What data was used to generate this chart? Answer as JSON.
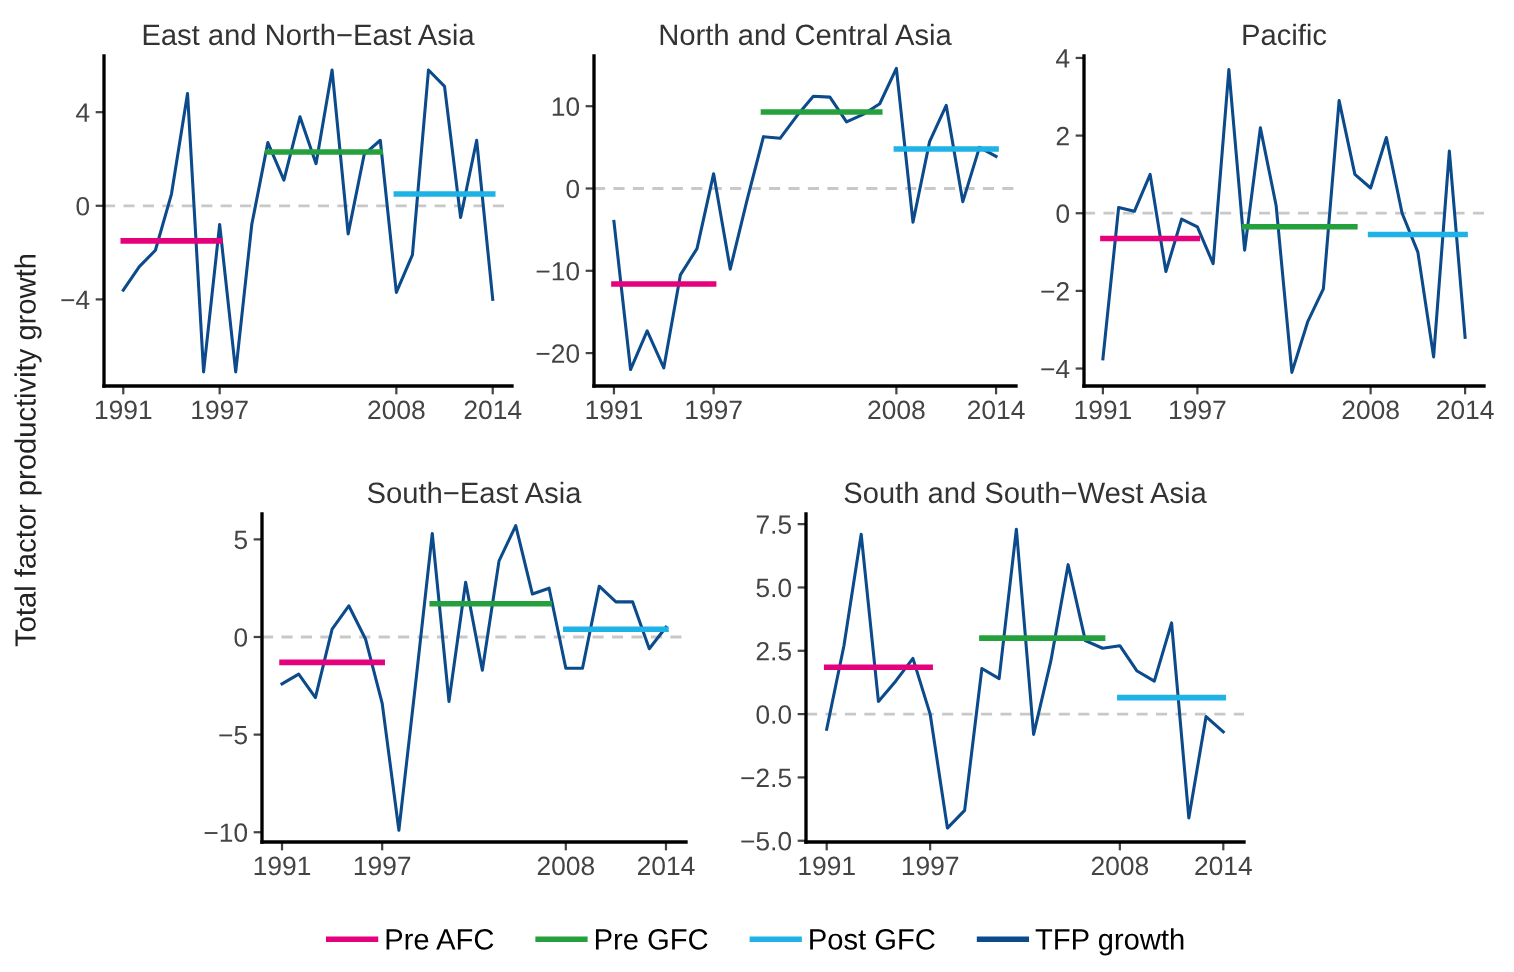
{
  "chart_data": [
    {
      "type": "line",
      "title": "East and North−East Asia",
      "ylabel": "Total factor productivity growth",
      "legend": "bottom",
      "xlim": [
        1989.8,
        2015.2
      ],
      "xticks": [
        1991,
        1997,
        2008,
        2014
      ],
      "ylim": [
        -7.7,
        6.4
      ],
      "yticks": [
        {
          "value": -4,
          "label": "−4"
        },
        0,
        4
      ],
      "ref_lines": [
        {
          "axis": "y",
          "value": 0,
          "color": "#c8c8c8",
          "line_style": "dashed"
        }
      ],
      "series": [
        {
          "name": "Pre AFC",
          "color": "#e5007d",
          "x": [
            1991,
            1997
          ],
          "values": [
            -1.5,
            -1.5
          ]
        },
        {
          "name": "Pre GFC",
          "color": "#24a03c",
          "x": [
            2000,
            2007
          ],
          "values": [
            2.3,
            2.3
          ]
        },
        {
          "name": "Post GFC",
          "color": "#1eb2e6",
          "x": [
            2008,
            2014
          ],
          "values": [
            0.5,
            0.5
          ]
        },
        {
          "name": "TFP growth",
          "color": "#0b4a8b",
          "x": [
            1991,
            1992,
            1993,
            1994,
            1995,
            1996,
            1997,
            1998,
            1999,
            2000,
            2001,
            2002,
            2003,
            2004,
            2005,
            2006,
            2007,
            2008,
            2009,
            2010,
            2011,
            2012,
            2013,
            2014
          ],
          "values": [
            -3.6,
            -2.6,
            -1.9,
            0.5,
            4.8,
            -7.1,
            -0.8,
            -7.1,
            -0.8,
            2.7,
            1.1,
            3.8,
            1.8,
            5.8,
            -1.2,
            2.2,
            2.8,
            -3.7,
            -2.1,
            5.8,
            5.1,
            -0.5,
            2.8,
            -4.0
          ]
        }
      ]
    },
    {
      "type": "line",
      "title": "North and Central Asia",
      "xlim": [
        1989.8,
        2015.2
      ],
      "xticks": [
        1991,
        1997,
        2008,
        2014
      ],
      "ylim": [
        -24,
        16.1
      ],
      "yticks": [
        {
          "value": -20,
          "label": "−20"
        },
        {
          "value": -10,
          "label": "−10"
        },
        0,
        10
      ],
      "ref_lines": [
        {
          "axis": "y",
          "value": 0,
          "color": "#c8c8c8",
          "line_style": "dashed"
        }
      ],
      "series": [
        {
          "color": "#e5007d",
          "x": [
            1991,
            1997
          ],
          "values": [
            -11.6,
            -11.6
          ]
        },
        {
          "color": "#24a03c",
          "x": [
            2000,
            2007
          ],
          "values": [
            9.3,
            9.3
          ]
        },
        {
          "color": "#1eb2e6",
          "x": [
            2008,
            2014
          ],
          "values": [
            4.8,
            4.8
          ]
        },
        {
          "color": "#0b4a8b",
          "x": [
            1991,
            1992,
            1993,
            1994,
            1995,
            1996,
            1997,
            1998,
            1999,
            2000,
            2001,
            2002,
            2003,
            2004,
            2005,
            2006,
            2007,
            2008,
            2009,
            2010,
            2011,
            2012,
            2013,
            2014
          ],
          "values": [
            -4,
            -22,
            -17.3,
            -21.8,
            -10.5,
            -7.3,
            1.8,
            -9.8,
            -1.5,
            6.3,
            6.1,
            8.8,
            11.2,
            11.1,
            8.1,
            9.0,
            10.3,
            14.6,
            -4.1,
            5.7,
            10.1,
            -1.6,
            5.0,
            3.9
          ]
        }
      ]
    },
    {
      "type": "line",
      "title": "Pacific",
      "xlim": [
        1989.8,
        2015.2
      ],
      "xticks": [
        1991,
        1997,
        2008,
        2014
      ],
      "ylim": [
        -4.45,
        4.05
      ],
      "yticks": [
        {
          "value": -4,
          "label": "−4"
        },
        {
          "value": -2,
          "label": "−2"
        },
        0,
        2,
        4
      ],
      "ref_lines": [
        {
          "axis": "y",
          "value": 0,
          "color": "#c8c8c8",
          "line_style": "dashed"
        }
      ],
      "series": [
        {
          "color": "#e5007d",
          "x": [
            1991,
            1997
          ],
          "values": [
            -0.65,
            -0.65
          ]
        },
        {
          "color": "#24a03c",
          "x": [
            2000,
            2007
          ],
          "values": [
            -0.35,
            -0.35
          ]
        },
        {
          "color": "#1eb2e6",
          "x": [
            2008,
            2014
          ],
          "values": [
            -0.55,
            -0.55
          ]
        },
        {
          "color": "#0b4a8b",
          "x": [
            1991,
            1992,
            1993,
            1994,
            1995,
            1996,
            1997,
            1998,
            1999,
            2000,
            2001,
            2002,
            2003,
            2004,
            2005,
            2006,
            2007,
            2008,
            2009,
            2010,
            2011,
            2012,
            2013,
            2014
          ],
          "values": [
            -3.75,
            0.15,
            0.05,
            1.0,
            -1.5,
            -0.15,
            -0.35,
            -1.3,
            3.7,
            -0.95,
            2.2,
            0.2,
            -4.1,
            -2.8,
            -1.95,
            2.9,
            1.0,
            0.65,
            1.95,
            0.0,
            -1.0,
            -3.7,
            1.6,
            -3.2
          ]
        }
      ]
    },
    {
      "type": "line",
      "title": "South−East Asia",
      "xlim": [
        1989.8,
        2015.2
      ],
      "xticks": [
        1991,
        1997,
        2008,
        2014
      ],
      "ylim": [
        -10.5,
        6.3
      ],
      "yticks": [
        {
          "value": -10,
          "label": "−10"
        },
        {
          "value": -5,
          "label": "−5"
        },
        0,
        5
      ],
      "ref_lines": [
        {
          "axis": "y",
          "value": 0,
          "color": "#c8c8c8",
          "line_style": "dashed"
        }
      ],
      "series": [
        {
          "color": "#e5007d",
          "x": [
            1991,
            1997
          ],
          "values": [
            -1.3,
            -1.3
          ]
        },
        {
          "color": "#24a03c",
          "x": [
            2000,
            2007
          ],
          "values": [
            1.7,
            1.7
          ]
        },
        {
          "color": "#1eb2e6",
          "x": [
            2008,
            2014
          ],
          "values": [
            0.4,
            0.4
          ]
        },
        {
          "color": "#0b4a8b",
          "x": [
            1991,
            1992,
            1993,
            1994,
            1995,
            1996,
            1997,
            1998,
            1999,
            2000,
            2001,
            2002,
            2003,
            2004,
            2005,
            2006,
            2007,
            2008,
            2009,
            2010,
            2011,
            2012,
            2013,
            2014
          ],
          "values": [
            -2.4,
            -1.9,
            -3.1,
            0.4,
            1.6,
            -0.1,
            -3.4,
            -9.9,
            -2.4,
            5.3,
            -3.3,
            2.8,
            -1.7,
            3.9,
            5.7,
            2.2,
            2.5,
            -1.6,
            -1.6,
            2.6,
            1.8,
            1.8,
            -0.6,
            0.5
          ]
        }
      ]
    },
    {
      "type": "line",
      "title": "South and South−West Asia",
      "xlim": [
        1989.8,
        2015.2
      ],
      "xticks": [
        1991,
        1997,
        2008,
        2014
      ],
      "ylim": [
        -5.05,
        7.9
      ],
      "yticks": [
        {
          "value": -5,
          "label": "−5.0"
        },
        {
          "value": -2.5,
          "label": "−2.5"
        },
        {
          "value": 0,
          "label": "0.0"
        },
        {
          "value": 2.5,
          "label": "2.5"
        },
        {
          "value": 5,
          "label": "5.0"
        },
        {
          "value": 7.5,
          "label": "7.5"
        }
      ],
      "ref_lines": [
        {
          "axis": "y",
          "value": 0,
          "color": "#c8c8c8",
          "line_style": "dashed"
        }
      ],
      "series": [
        {
          "color": "#e5007d",
          "x": [
            1991,
            1997
          ],
          "values": [
            1.85,
            1.85
          ]
        },
        {
          "color": "#24a03c",
          "x": [
            2000,
            2007
          ],
          "values": [
            3.0,
            3.0
          ]
        },
        {
          "color": "#1eb2e6",
          "x": [
            2008,
            2014
          ],
          "values": [
            0.65,
            0.65
          ]
        },
        {
          "color": "#0b4a8b",
          "x": [
            1991,
            1992,
            1993,
            1994,
            1995,
            1996,
            1997,
            1998,
            1999,
            2000,
            2001,
            2002,
            2003,
            2004,
            2005,
            2006,
            2007,
            2008,
            2009,
            2010,
            2011,
            2012,
            2013,
            2014
          ],
          "values": [
            -0.6,
            2.7,
            7.1,
            0.5,
            1.3,
            2.2,
            0.0,
            -4.5,
            -3.8,
            1.8,
            1.4,
            7.3,
            -0.8,
            2.1,
            5.9,
            2.9,
            2.6,
            2.7,
            1.7,
            1.3,
            3.6,
            -4.1,
            -0.1,
            -0.7
          ]
        }
      ]
    }
  ]
}
